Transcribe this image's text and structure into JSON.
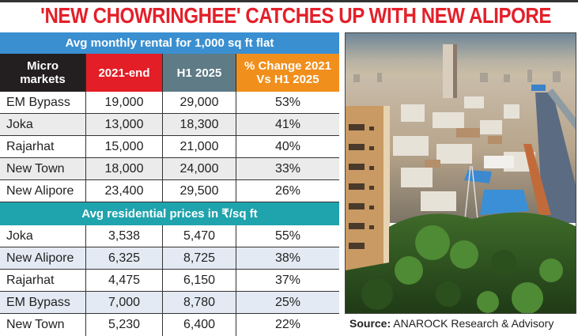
{
  "headline": "'NEW CHOWRINGHEE' CATCHES UP WITH NEW ALIPORE",
  "rental": {
    "title": "Avg monthly rental for 1,000 sq ft flat",
    "columns": [
      "Micro markets",
      "2021-end",
      "H1 2025",
      "% Change 2021 Vs H1 2025"
    ],
    "column_colors": [
      "#231f20",
      "#e31e26",
      "#5e7b86",
      "#f18f1d"
    ],
    "rows": [
      {
        "market": "EM Bypass",
        "y2021": "19,000",
        "h12025": "29,000",
        "change": "53%"
      },
      {
        "market": "Joka",
        "y2021": "13,000",
        "h12025": "18,300",
        "change": "41%"
      },
      {
        "market": "Rajarhat",
        "y2021": "15,000",
        "h12025": "21,000",
        "change": "40%"
      },
      {
        "market": "New Town",
        "y2021": "18,000",
        "h12025": "24,000",
        "change": "33%"
      },
      {
        "market": "New Alipore",
        "y2021": "23,400",
        "h12025": "29,500",
        "change": "26%"
      }
    ]
  },
  "prices": {
    "title": "Avg residential prices in ₹/sq ft",
    "rows": [
      {
        "market": "Joka",
        "y2021": "3,538",
        "h12025": "5,470",
        "change": "55%"
      },
      {
        "market": "New Alipore",
        "y2021": "6,325",
        "h12025": "8,725",
        "change": "38%"
      },
      {
        "market": "Rajarhat",
        "y2021": "4,475",
        "h12025": "6,150",
        "change": "37%"
      },
      {
        "market": "EM Bypass",
        "y2021": "7,000",
        "h12025": "8,780",
        "change": "25%"
      },
      {
        "market": "New Town",
        "y2021": "5,230",
        "h12025": "6,400",
        "change": "22%"
      }
    ]
  },
  "source": {
    "label": "Source:",
    "text": "ANAROCK Research & Advisory"
  },
  "colors": {
    "headline": "#e3202a",
    "rental_band": "#3a8fd0",
    "price_band": "#1fa3ad"
  }
}
